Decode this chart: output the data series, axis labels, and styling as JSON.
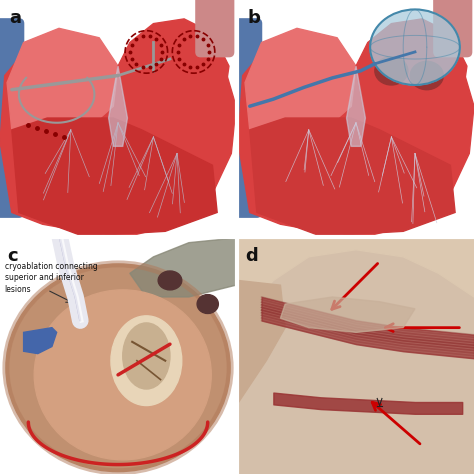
{
  "figure_size": [
    4.74,
    4.74
  ],
  "dpi": 100,
  "background_color": "#ffffff",
  "panel_labels": [
    "a",
    "b",
    "c",
    "d"
  ],
  "label_fontsize": 13,
  "label_color": "#111111",
  "panels": {
    "a": {
      "bg_color": "#ffffff",
      "heart_main": "#d94040",
      "heart_light": "#e87070",
      "atrium_right": "#e06060",
      "atrium_left": "#cc3838",
      "ventricle_color": "#c83030",
      "catheter_color": "#999999",
      "lesion_color": "#880000",
      "blue_vessel": "#5577aa",
      "pink_vessel": "#cc8888",
      "septum_color": "#ccccdd",
      "chordae_color": "#bbbbcc"
    },
    "b": {
      "bg_color": "#ffffff",
      "heart_main": "#d94040",
      "heart_light": "#e87070",
      "atrium_right": "#e06060",
      "atrium_left": "#cc3838",
      "balloon_fill": "#aaccdd",
      "balloon_edge": "#4488aa",
      "catheter_color": "#4477aa",
      "blue_vessel": "#5577aa",
      "pink_vessel": "#cc8888",
      "septum_color": "#ccccdd",
      "pv_color": "#993333"
    },
    "c": {
      "bg_color": "#ffffff",
      "outer_tissue": "#c09070",
      "inner_tissue": "#d4a080",
      "wall_color": "#b07858",
      "valve_color": "#e8d5b8",
      "valve_dark": "#c8b090",
      "cryo_white": "#e8e8f0",
      "cryo_gray": "#aaaacc",
      "clamp_color": "#4466aa",
      "lesion_color": "#cc2222",
      "text": "cryoablation connecting\nsuperior and inferior\nlesions",
      "text_color": "#111111",
      "text_fontsize": 5.5,
      "dark_flap": "#888877"
    },
    "d": {
      "bg_color": "#ffffff",
      "tissue_bg": "#d4bfaa",
      "tissue_dark": "#b89878",
      "vessel_main": "#993333",
      "vessel_dark": "#661111",
      "arrow_color": "#cc0000",
      "arrow_lw": 2.0
    }
  }
}
